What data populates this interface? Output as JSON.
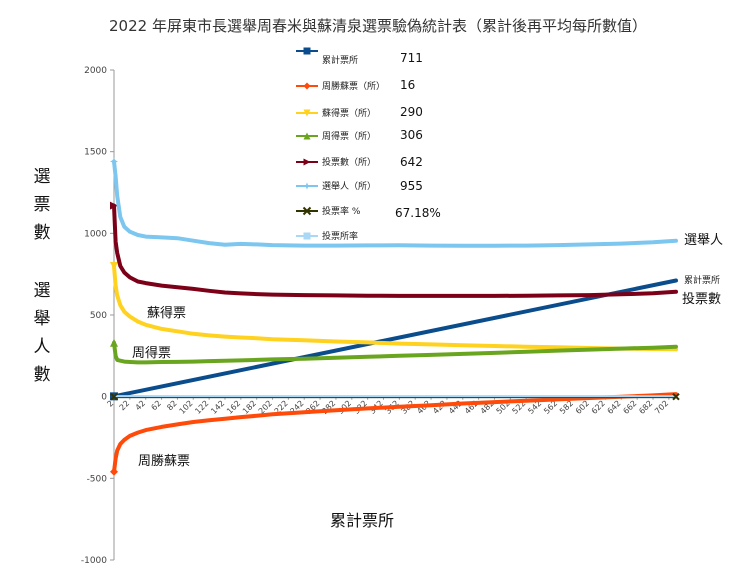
{
  "chart_data": {
    "type": "line",
    "title": "2022 年屏東市長選舉周春米與蘇清泉選票驗偽統計表（累計後再平均每所數值）",
    "xlabel": "累計票所",
    "ylabel_chars": [
      "選",
      "票",
      "數",
      "選",
      "舉",
      "人",
      "數"
    ],
    "ylim": [
      -1000,
      2000
    ],
    "yticks": [
      2000,
      1500,
      1000,
      500,
      0,
      -500,
      -1000
    ],
    "xlim": [
      2,
      711
    ],
    "xticks": [
      2,
      22,
      42,
      62,
      82,
      102,
      122,
      142,
      162,
      182,
      202,
      222,
      242,
      262,
      282,
      302,
      322,
      342,
      362,
      382,
      402,
      422,
      442,
      462,
      482,
      502,
      522,
      542,
      562,
      582,
      602,
      622,
      642,
      662,
      682,
      702
    ],
    "series": [
      {
        "name": "累計票所",
        "color": "#0b4d8c",
        "marker": "square",
        "legend_value": "711",
        "end_label": "累計票所",
        "x": [
          2,
          711
        ],
        "values": [
          2,
          711
        ]
      },
      {
        "name": "周勝蘇票（所）",
        "color": "#ff4a0a",
        "marker": "diamond",
        "legend_value": "16",
        "label": "周勝蘇票",
        "x": [
          2,
          4,
          6,
          10,
          15,
          22,
          32,
          42,
          62,
          82,
          102,
          122,
          142,
          162,
          182,
          202,
          242,
          282,
          322,
          362,
          402,
          442,
          482,
          522,
          562,
          602,
          642,
          682,
          711
        ],
        "values": [
          -460,
          -380,
          -330,
          -290,
          -265,
          -240,
          -220,
          -205,
          -185,
          -170,
          -155,
          -145,
          -135,
          -125,
          -117,
          -108,
          -95,
          -83,
          -72,
          -62,
          -52,
          -42,
          -33,
          -25,
          -17,
          -8,
          0,
          8,
          16
        ]
      },
      {
        "name": "蘇得票（所）",
        "color": "#ffd21f",
        "marker": "triangle-down",
        "legend_value": "290",
        "label": "蘇得票",
        "x": [
          2,
          4,
          6,
          10,
          15,
          22,
          32,
          42,
          62,
          82,
          102,
          122,
          142,
          162,
          182,
          202,
          242,
          282,
          322,
          362,
          402,
          442,
          482,
          522,
          562,
          602,
          642,
          682,
          711
        ],
        "values": [
          800,
          680,
          620,
          560,
          520,
          490,
          460,
          440,
          415,
          400,
          385,
          375,
          368,
          362,
          358,
          352,
          345,
          338,
          332,
          325,
          320,
          315,
          310,
          306,
          302,
          298,
          294,
          292,
          290
        ]
      },
      {
        "name": "周得票（所）",
        "color": "#6aa51f",
        "marker": "triangle",
        "legend_value": "306",
        "label": "周得票",
        "x": [
          2,
          4,
          6,
          10,
          15,
          22,
          32,
          42,
          62,
          82,
          102,
          122,
          142,
          162,
          182,
          202,
          242,
          282,
          322,
          362,
          402,
          442,
          482,
          522,
          562,
          602,
          642,
          682,
          711
        ],
        "values": [
          330,
          250,
          225,
          220,
          215,
          212,
          210,
          210,
          212,
          213,
          215,
          218,
          220,
          222,
          225,
          228,
          232,
          238,
          244,
          250,
          256,
          262,
          268,
          275,
          282,
          288,
          294,
          300,
          306
        ]
      },
      {
        "name": "投票數（所）",
        "color": "#7b0018",
        "marker": "triangle-right",
        "legend_value": "642",
        "end_label": "投票數",
        "x": [
          2,
          4,
          6,
          10,
          15,
          22,
          32,
          42,
          62,
          82,
          102,
          122,
          142,
          162,
          182,
          202,
          242,
          282,
          322,
          362,
          402,
          442,
          482,
          522,
          562,
          602,
          642,
          682,
          711
        ],
        "values": [
          1170,
          950,
          880,
          800,
          760,
          730,
          705,
          695,
          680,
          670,
          660,
          648,
          638,
          632,
          628,
          625,
          622,
          620,
          618,
          617,
          617,
          617,
          617,
          618,
          620,
          622,
          627,
          633,
          642
        ]
      },
      {
        "name": "選舉人（所）",
        "color": "#7cc6f0",
        "marker": "star",
        "legend_value": "955",
        "end_label": "選舉人",
        "x": [
          2,
          4,
          6,
          10,
          15,
          22,
          32,
          42,
          62,
          82,
          102,
          122,
          142,
          162,
          182,
          202,
          242,
          282,
          322,
          362,
          402,
          442,
          482,
          522,
          562,
          602,
          642,
          682,
          711
        ],
        "values": [
          1440,
          1350,
          1230,
          1100,
          1040,
          1010,
          990,
          980,
          975,
          970,
          955,
          940,
          930,
          935,
          932,
          928,
          925,
          925,
          926,
          927,
          925,
          924,
          924,
          925,
          928,
          932,
          937,
          945,
          955
        ]
      },
      {
        "name": "投票率 %",
        "color": "#333300",
        "marker": "x",
        "legend_value": "67.18%",
        "x": [
          2,
          711
        ],
        "values": [
          0.68,
          0.67
        ]
      },
      {
        "name": "投票所率",
        "color": "#a8d8f5",
        "marker": "square-light",
        "legend_value": "",
        "x": [
          2,
          711
        ],
        "values": [
          1,
          1
        ]
      }
    ]
  }
}
